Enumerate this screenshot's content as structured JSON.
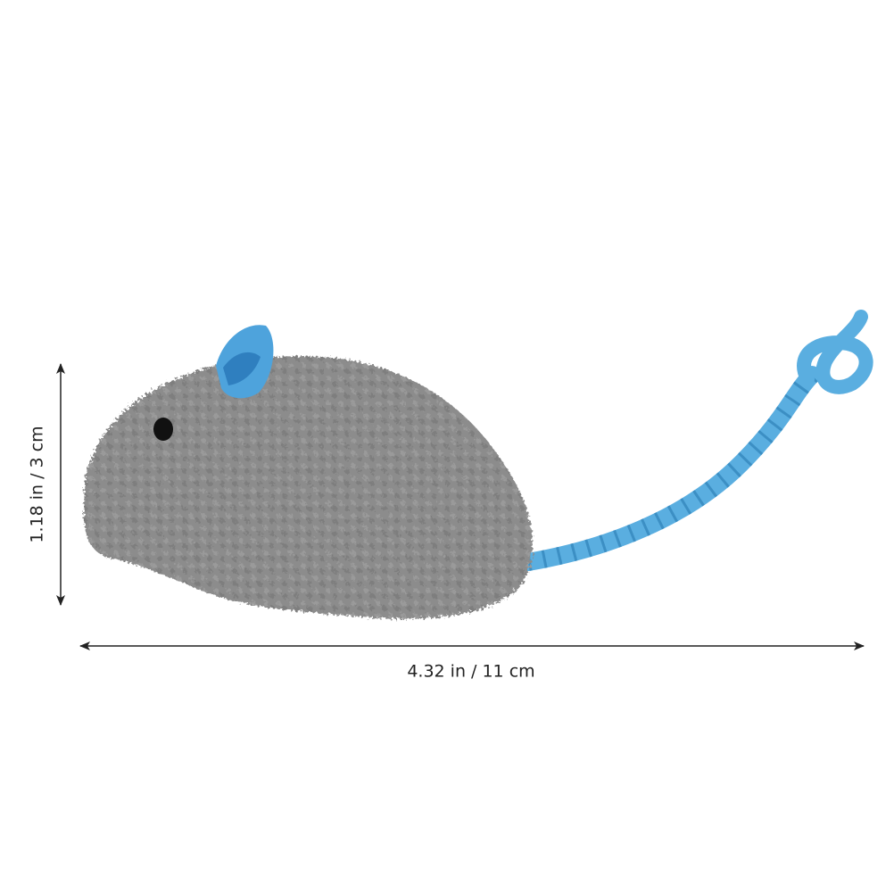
{
  "dimensions": {
    "height": "1.18 in / 3 cm",
    "width": "4.32 in / 11 cm"
  }
}
